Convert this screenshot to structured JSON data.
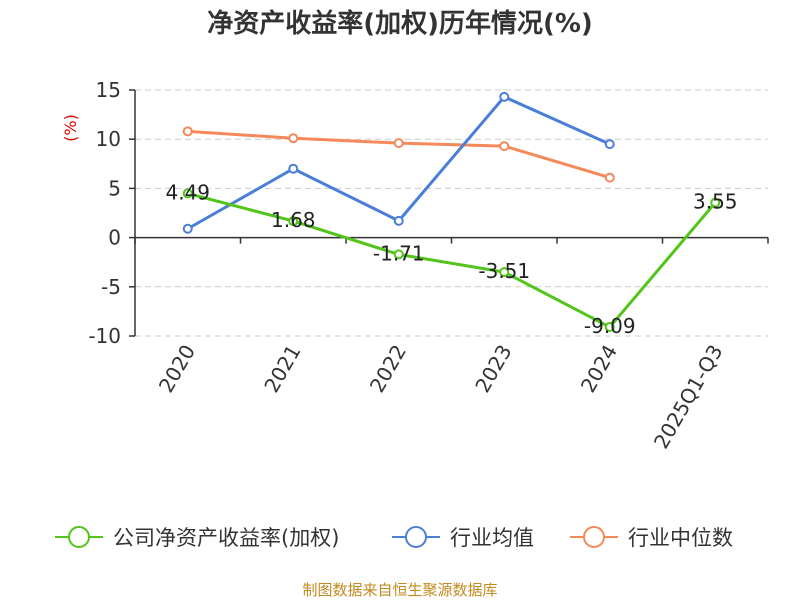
{
  "chart_data": {
    "type": "line",
    "title": "净资产收益率(加权)历年情况(%)",
    "ylabel": "(%)",
    "xlabel": "",
    "categories": [
      "2020",
      "2021",
      "2022",
      "2023",
      "2024",
      "2025Q1-Q3"
    ],
    "ylim": [
      -10,
      15
    ],
    "yticks": [
      15,
      10,
      5,
      0,
      -5,
      -10
    ],
    "grid": true,
    "legend_position": "bottom",
    "series": [
      {
        "name": "公司净资产收益率(加权)",
        "color": "#52c41a",
        "values": [
          4.49,
          1.68,
          -1.71,
          -3.51,
          -9.09,
          3.55
        ],
        "labels": [
          "4.49",
          "1.68",
          "-1.71",
          "-3.51",
          "-9.09",
          "3.55"
        ]
      },
      {
        "name": "行业均值",
        "color": "#4a7fd9",
        "values": [
          0.9,
          7.0,
          1.7,
          14.3,
          9.5,
          null
        ]
      },
      {
        "name": "行业中位数",
        "color": "#f5895a",
        "values": [
          10.8,
          10.1,
          9.6,
          9.3,
          6.1,
          null
        ]
      }
    ]
  },
  "source": "制图数据来自恒生聚源数据库"
}
